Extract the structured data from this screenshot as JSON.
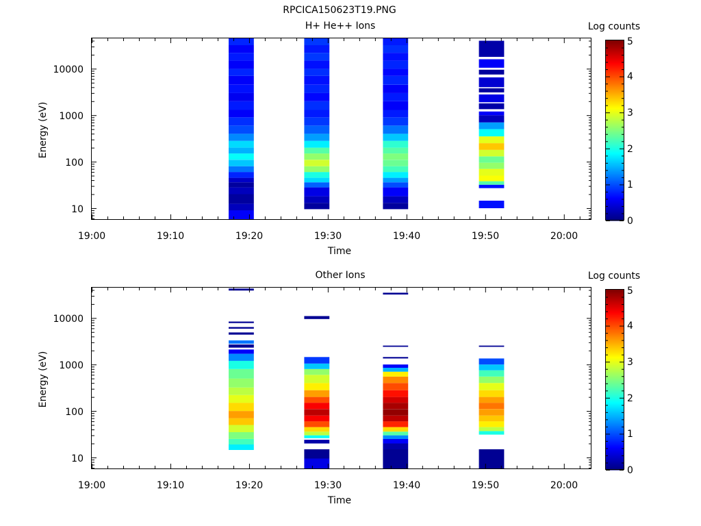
{
  "window": {
    "filename": "RPCICA150623T19.PNG"
  },
  "colormap": {
    "stops": [
      "#00007f",
      "#0000ff",
      "#007fff",
      "#00ffff",
      "#7fff7f",
      "#ffff00",
      "#ff7f00",
      "#ff0000",
      "#7f0000"
    ]
  },
  "chart_data": [
    {
      "type": "heatmap",
      "title": "H+ He++ Ions",
      "xlabel": "Time",
      "ylabel": "Energy (eV)",
      "colorbar_label": "Log counts",
      "x_ticks": [
        "19:00",
        "19:10",
        "19:20",
        "19:30",
        "19:40",
        "19:50",
        "20:00"
      ],
      "y_ticks": [
        "10",
        "100",
        "1000",
        "10000"
      ],
      "colorbar_ticks": [
        "0",
        "1",
        "2",
        "3",
        "4",
        "5"
      ],
      "xlim_minutes": [
        0,
        63.5
      ],
      "ylim_eV": [
        5.8,
        45000
      ],
      "clim": [
        0,
        5
      ],
      "y_scale": "log",
      "columns": [
        {
          "t_start": 17.4,
          "t_end": 20.6,
          "bins": [
            [
              5.8,
              9.0,
              0.6
            ],
            [
              9.0,
              12.5,
              0.3
            ],
            [
              12.5,
              20,
              0.15
            ],
            [
              20,
              28,
              0.3
            ],
            [
              28,
              36,
              0.15
            ],
            [
              36,
              45,
              0.35
            ],
            [
              45,
              60,
              0.8
            ],
            [
              60,
              80,
              1.2
            ],
            [
              80,
              110,
              1.6
            ],
            [
              110,
              150,
              1.9
            ],
            [
              150,
              200,
              1.5
            ],
            [
              200,
              280,
              1.7
            ],
            [
              280,
              400,
              1.3
            ],
            [
              400,
              600,
              1.0
            ],
            [
              600,
              900,
              0.85
            ],
            [
              900,
              1300,
              0.6
            ],
            [
              1300,
              2000,
              0.75
            ],
            [
              2000,
              3000,
              0.55
            ],
            [
              3000,
              4500,
              0.7
            ],
            [
              4500,
              7000,
              0.6
            ],
            [
              7000,
              10000,
              0.8
            ],
            [
              10000,
              15000,
              0.6
            ],
            [
              15000,
              22000,
              0.75
            ],
            [
              22000,
              32000,
              0.6
            ],
            [
              32000,
              45000,
              0.8
            ]
          ]
        },
        {
          "t_start": 27.0,
          "t_end": 30.2,
          "bins": [
            [
              9.5,
              13,
              0.15
            ],
            [
              13,
              18,
              0.3
            ],
            [
              18,
              28,
              0.5
            ],
            [
              28,
              36,
              1.1
            ],
            [
              36,
              45,
              1.7
            ],
            [
              45,
              60,
              2.0
            ],
            [
              60,
              80,
              2.6
            ],
            [
              80,
              110,
              2.9
            ],
            [
              110,
              150,
              2.6
            ],
            [
              150,
              200,
              2.3
            ],
            [
              200,
              280,
              1.8
            ],
            [
              280,
              400,
              1.4
            ],
            [
              400,
              600,
              1.1
            ],
            [
              600,
              900,
              0.9
            ],
            [
              900,
              1300,
              0.75
            ],
            [
              1300,
              2000,
              0.85
            ],
            [
              2000,
              3000,
              0.65
            ],
            [
              3000,
              4500,
              0.8
            ],
            [
              4500,
              7000,
              0.7
            ],
            [
              7000,
              10000,
              0.85
            ],
            [
              10000,
              15000,
              0.7
            ],
            [
              15000,
              22000,
              0.9
            ],
            [
              22000,
              32000,
              0.75
            ],
            [
              32000,
              45000,
              0.9
            ]
          ]
        },
        {
          "t_start": 37.0,
          "t_end": 40.2,
          "bins": [
            [
              9.5,
              13,
              0.15
            ],
            [
              13,
              18,
              0.3
            ],
            [
              18,
              28,
              0.6
            ],
            [
              28,
              36,
              1.0
            ],
            [
              36,
              45,
              1.4
            ],
            [
              45,
              60,
              1.8
            ],
            [
              60,
              80,
              2.2
            ],
            [
              80,
              110,
              2.4
            ],
            [
              110,
              150,
              2.5
            ],
            [
              150,
              200,
              2.3
            ],
            [
              200,
              280,
              2.1
            ],
            [
              280,
              400,
              1.6
            ],
            [
              400,
              600,
              1.2
            ],
            [
              600,
              900,
              0.9
            ],
            [
              900,
              1300,
              0.75
            ],
            [
              1300,
              2000,
              0.6
            ],
            [
              2000,
              3000,
              0.75
            ],
            [
              3000,
              4500,
              0.6
            ],
            [
              4500,
              7000,
              0.8
            ],
            [
              7000,
              10000,
              0.65
            ],
            [
              10000,
              15000,
              0.8
            ],
            [
              15000,
              22000,
              0.7
            ],
            [
              22000,
              32000,
              0.85
            ],
            [
              32000,
              45000,
              0.75
            ]
          ]
        },
        {
          "t_start": 49.2,
          "t_end": 52.4,
          "bins": [
            [
              10,
              14.5,
              0.7
            ],
            [
              27,
              32,
              0.7
            ],
            [
              32,
              38,
              2.3
            ],
            [
              38,
              50,
              3.1
            ],
            [
              50,
              70,
              3.0
            ],
            [
              70,
              95,
              2.6
            ],
            [
              95,
              130,
              2.4
            ],
            [
              130,
              180,
              2.9
            ],
            [
              180,
              250,
              3.4
            ],
            [
              250,
              350,
              3.0
            ],
            [
              350,
              500,
              1.9
            ],
            [
              500,
              700,
              1.4
            ],
            [
              700,
              1000,
              0.3
            ],
            [
              1000,
              1200,
              0.6
            ],
            [
              1350,
              1800,
              0.2
            ],
            [
              1900,
              2800,
              0.5
            ],
            [
              3100,
              3800,
              0.15
            ],
            [
              4000,
              6500,
              0.4
            ],
            [
              7500,
              9500,
              0.15
            ],
            [
              10500,
              16000,
              0.6
            ],
            [
              18000,
              40000,
              0.2
            ]
          ]
        }
      ]
    },
    {
      "type": "heatmap",
      "title": "Other Ions",
      "xlabel": "Time",
      "ylabel": "Energy (eV)",
      "colorbar_label": "Log counts",
      "x_ticks": [
        "19:00",
        "19:10",
        "19:20",
        "19:30",
        "19:40",
        "19:50",
        "20:00"
      ],
      "y_ticks": [
        "10",
        "100",
        "1000",
        "10000"
      ],
      "colorbar_ticks": [
        "0",
        "1",
        "2",
        "3",
        "4",
        "5"
      ],
      "xlim_minutes": [
        0,
        63.5
      ],
      "ylim_eV": [
        5.8,
        45000
      ],
      "clim": [
        0,
        5
      ],
      "y_scale": "log",
      "columns": [
        {
          "t_start": 17.4,
          "t_end": 20.6,
          "bins": [
            [
              14.5,
              19,
              1.8
            ],
            [
              19,
              25,
              2.2
            ],
            [
              25,
              35,
              2.5
            ],
            [
              35,
              50,
              2.9
            ],
            [
              50,
              70,
              3.4
            ],
            [
              70,
              100,
              3.6
            ],
            [
              100,
              150,
              3.3
            ],
            [
              150,
              220,
              3.0
            ],
            [
              220,
              320,
              2.8
            ],
            [
              320,
              500,
              2.6
            ],
            [
              500,
              800,
              2.4
            ],
            [
              800,
              1200,
              2.0
            ],
            [
              1200,
              1700,
              1.3
            ],
            [
              1700,
              2100,
              0.6
            ],
            [
              2300,
              2700,
              0.1
            ],
            [
              2800,
              3300,
              1.2
            ],
            [
              4400,
              4900,
              0.1
            ],
            [
              5900,
              6400,
              0.1
            ],
            [
              7800,
              8400,
              0.1
            ],
            [
              39000,
              43000,
              0.1
            ]
          ]
        },
        {
          "t_start": 27.0,
          "t_end": 30.2,
          "bins": [
            [
              5.8,
              9.5,
              0.5
            ],
            [
              9.5,
              15,
              0.1
            ],
            [
              20,
              24,
              0.2
            ],
            [
              26,
              30,
              1.9
            ],
            [
              30,
              36,
              2.8
            ],
            [
              36,
              45,
              3.3
            ],
            [
              45,
              60,
              4.0
            ],
            [
              60,
              80,
              4.4
            ],
            [
              80,
              110,
              4.7
            ],
            [
              110,
              150,
              4.4
            ],
            [
              150,
              200,
              4.0
            ],
            [
              200,
              280,
              3.6
            ],
            [
              280,
              400,
              3.2
            ],
            [
              400,
              600,
              2.9
            ],
            [
              600,
              800,
              2.6
            ],
            [
              800,
              1050,
              1.6
            ],
            [
              1050,
              1450,
              0.9
            ],
            [
              9500,
              11000,
              0.1
            ]
          ]
        },
        {
          "t_start": 37.0,
          "t_end": 40.2,
          "bins": [
            [
              5.8,
              15,
              0.1
            ],
            [
              15,
              20,
              0.2
            ],
            [
              20,
              25,
              0.6
            ],
            [
              25,
              30,
              1.3
            ],
            [
              30,
              36,
              2.3
            ],
            [
              36,
              45,
              3.3
            ],
            [
              45,
              60,
              4.2
            ],
            [
              60,
              80,
              4.7
            ],
            [
              80,
              110,
              4.9
            ],
            [
              110,
              150,
              4.8
            ],
            [
              150,
              200,
              4.6
            ],
            [
              200,
              280,
              4.3
            ],
            [
              280,
              400,
              4.0
            ],
            [
              400,
              550,
              3.7
            ],
            [
              550,
              700,
              3.2
            ],
            [
              700,
              850,
              1.5
            ],
            [
              850,
              1000,
              0.6
            ],
            [
              1350,
              1450,
              0.1
            ],
            [
              2400,
              2550,
              0.1
            ],
            [
              32000,
              35000,
              0.1
            ]
          ]
        },
        {
          "t_start": 49.2,
          "t_end": 52.4,
          "bins": [
            [
              5.8,
              15,
              0.1
            ],
            [
              31,
              37,
              2.0
            ],
            [
              37,
              45,
              2.8
            ],
            [
              45,
              60,
              3.2
            ],
            [
              60,
              80,
              3.4
            ],
            [
              80,
              110,
              3.6
            ],
            [
              110,
              150,
              3.8
            ],
            [
              150,
              200,
              3.6
            ],
            [
              200,
              280,
              3.3
            ],
            [
              280,
              400,
              3.0
            ],
            [
              400,
              550,
              2.6
            ],
            [
              550,
              750,
              2.2
            ],
            [
              750,
              1000,
              1.6
            ],
            [
              1000,
              1350,
              1.0
            ],
            [
              2400,
              2550,
              0.1
            ]
          ]
        }
      ]
    }
  ]
}
